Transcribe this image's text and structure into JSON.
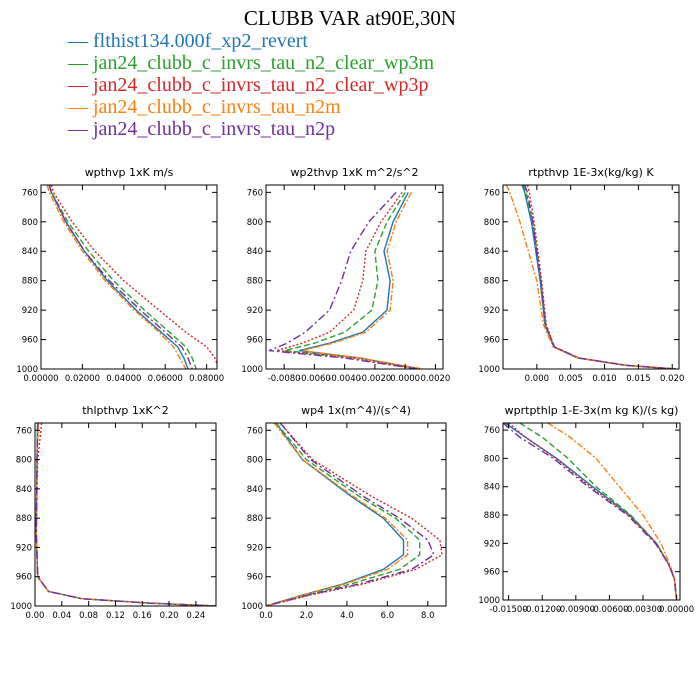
{
  "title": "CLUBB VAR at90E,30N",
  "series": [
    {
      "name": "flthist134.000f_xp2_revert",
      "color": "#1f77b4",
      "dash": ""
    },
    {
      "name": "jan24_clubb_c_invrs_tau_n2_clear_wp3m",
      "color": "#2ca02c",
      "dash": "6,3"
    },
    {
      "name": "jan24_clubb_c_invrs_tau_n2_clear_wp3p",
      "color": "#d62728",
      "dash": "2,2"
    },
    {
      "name": "jan24_clubb_c_invrs_tau_n2m",
      "color": "#ff7f0e",
      "dash": "6,2,2,2"
    },
    {
      "name": "jan24_clubb_c_invrs_tau_n2p",
      "color": "#7030a0",
      "dash": "8,3,2,3"
    }
  ],
  "chart_data": [
    {
      "type": "line",
      "title": "wpthvp   1xK m/s",
      "ylim": [
        1000,
        750
      ],
      "yticks": [
        760,
        800,
        840,
        880,
        920,
        960,
        1000
      ],
      "xlim": [
        0,
        0.085
      ],
      "xticks": [
        0,
        0.02,
        0.04,
        0.06,
        0.08
      ],
      "xticklabels": [
        "0.00000",
        "0.02000",
        "0.04000",
        "0.06000",
        "0.08000"
      ],
      "y": [
        750,
        760,
        800,
        840,
        880,
        920,
        950,
        970,
        985,
        1000
      ],
      "series": [
        {
          "values": [
            0.004,
            0.005,
            0.012,
            0.021,
            0.032,
            0.046,
            0.058,
            0.066,
            0.069,
            0.071
          ]
        },
        {
          "values": [
            0.004,
            0.005,
            0.013,
            0.023,
            0.035,
            0.05,
            0.062,
            0.07,
            0.073,
            0.075
          ]
        },
        {
          "values": [
            0.005,
            0.006,
            0.015,
            0.026,
            0.04,
            0.057,
            0.07,
            0.08,
            0.084,
            0.086
          ]
        },
        {
          "values": [
            0.003,
            0.004,
            0.011,
            0.02,
            0.031,
            0.045,
            0.057,
            0.064,
            0.067,
            0.07
          ]
        },
        {
          "values": [
            0.004,
            0.005,
            0.012,
            0.021,
            0.033,
            0.048,
            0.06,
            0.068,
            0.071,
            0.073
          ]
        }
      ]
    },
    {
      "type": "line",
      "title": "wp2thvp   1xK m^2/s^2",
      "ylim": [
        1000,
        750
      ],
      "yticks": [
        760,
        800,
        840,
        880,
        920,
        960,
        1000
      ],
      "xlim": [
        -0.0092,
        0.0025
      ],
      "xticks": [
        -0.008,
        -0.006,
        -0.004,
        -0.002,
        0,
        0.002
      ],
      "xticklabels": [
        "-0.0080",
        "-0.0060",
        "-0.0040",
        "-0.0020",
        "0.0000",
        "0.0020"
      ],
      "y": [
        760,
        800,
        840,
        880,
        920,
        950,
        965,
        975,
        985,
        1000
      ],
      "series": [
        {
          "values": [
            0.0002,
            -0.0008,
            -0.0014,
            -0.001,
            -0.0012,
            -0.0028,
            -0.005,
            -0.007,
            -0.003,
            0.001
          ]
        },
        {
          "values": [
            0.0,
            -0.0012,
            -0.002,
            -0.0018,
            -0.0022,
            -0.004,
            -0.006,
            -0.008,
            -0.003,
            0.0008
          ]
        },
        {
          "values": [
            -0.0002,
            -0.0016,
            -0.0026,
            -0.0028,
            -0.0034,
            -0.005,
            -0.0068,
            -0.0085,
            -0.0035,
            0.0008
          ]
        },
        {
          "values": [
            0.0004,
            -0.0006,
            -0.0012,
            -0.0008,
            -0.001,
            -0.0026,
            -0.0048,
            -0.0068,
            -0.003,
            0.0012
          ]
        },
        {
          "values": [
            -0.0006,
            -0.0024,
            -0.0036,
            -0.0042,
            -0.005,
            -0.0066,
            -0.0078,
            -0.009,
            -0.004,
            0.0008
          ]
        }
      ]
    },
    {
      "type": "line",
      "title": "rtpthvp   1E-3x(kg/kg) K",
      "ylim": [
        1000,
        750
      ],
      "yticks": [
        760,
        800,
        840,
        880,
        920,
        960,
        1000
      ],
      "xlim": [
        -0.005,
        0.021
      ],
      "xticks": [
        0,
        0.005,
        0.01,
        0.015,
        0.02
      ],
      "xticklabels": [
        "0.000",
        "0.005",
        "0.010",
        "0.015",
        "0.020"
      ],
      "y": [
        750,
        760,
        800,
        880,
        940,
        970,
        985,
        995,
        1000
      ],
      "series": [
        {
          "values": [
            -0.0022,
            -0.0018,
            -0.0008,
            0.0005,
            0.0012,
            0.0025,
            0.006,
            0.013,
            0.0205
          ]
        },
        {
          "values": [
            -0.002,
            -0.0016,
            -0.0006,
            0.0006,
            0.0013,
            0.0026,
            0.0062,
            0.0132,
            0.0205
          ]
        },
        {
          "values": [
            -0.0014,
            -0.0011,
            -0.0004,
            0.0007,
            0.0014,
            0.0026,
            0.0062,
            0.0132,
            0.0205
          ]
        },
        {
          "values": [
            -0.0045,
            -0.004,
            -0.0025,
            0.0,
            0.001,
            0.0024,
            0.006,
            0.013,
            0.0205
          ]
        },
        {
          "values": [
            -0.0018,
            -0.0014,
            -0.0006,
            0.0006,
            0.0013,
            0.0026,
            0.0062,
            0.0132,
            0.0205
          ]
        }
      ]
    },
    {
      "type": "line",
      "title": "thlpthvp   1xK^2",
      "ylim": [
        1000,
        750
      ],
      "yticks": [
        760,
        800,
        840,
        880,
        920,
        960,
        1000
      ],
      "xlim": [
        0,
        0.27
      ],
      "xticks": [
        0,
        0.04,
        0.08,
        0.12,
        0.16,
        0.2,
        0.24
      ],
      "xticklabels": [
        "0.00",
        "0.04",
        "0.08",
        "0.12",
        "0.16",
        "0.20",
        "0.24"
      ],
      "y": [
        750,
        800,
        900,
        960,
        980,
        990,
        996,
        1000
      ],
      "series": [
        {
          "values": [
            0.004,
            0.003,
            0.002,
            0.004,
            0.02,
            0.07,
            0.17,
            0.27
          ]
        },
        {
          "values": [
            0.004,
            0.003,
            0.002,
            0.004,
            0.02,
            0.07,
            0.17,
            0.27
          ]
        },
        {
          "values": [
            0.01,
            0.004,
            0.002,
            0.004,
            0.02,
            0.07,
            0.17,
            0.27
          ]
        },
        {
          "values": [
            0.005,
            0.003,
            0.002,
            0.004,
            0.02,
            0.07,
            0.17,
            0.27
          ]
        },
        {
          "values": [
            0.004,
            0.003,
            0.002,
            0.004,
            0.02,
            0.07,
            0.17,
            0.27
          ]
        }
      ]
    },
    {
      "type": "line",
      "title": "wp4   1x(m^4)/(s^4)",
      "ylim": [
        1000,
        750
      ],
      "yticks": [
        760,
        800,
        840,
        880,
        920,
        960,
        1000
      ],
      "xlim": [
        0,
        8.9
      ],
      "xticks": [
        0,
        2,
        4,
        6,
        8
      ],
      "xticklabels": [
        "0.0",
        "2.0",
        "4.0",
        "6.0",
        "8.0"
      ],
      "y": [
        750,
        800,
        850,
        880,
        910,
        930,
        950,
        970,
        985,
        1000
      ],
      "series": [
        {
          "values": [
            0.5,
            1.8,
            4.2,
            5.8,
            6.8,
            6.8,
            5.8,
            3.8,
            1.8,
            0.0
          ]
        },
        {
          "values": [
            0.5,
            2.0,
            4.6,
            6.4,
            7.6,
            7.6,
            6.6,
            4.2,
            2.0,
            0.0
          ]
        },
        {
          "values": [
            0.7,
            2.3,
            5.2,
            7.2,
            8.6,
            8.7,
            7.4,
            4.8,
            2.2,
            0.0
          ]
        },
        {
          "values": [
            0.4,
            1.8,
            4.3,
            5.9,
            7.0,
            7.0,
            6.0,
            3.9,
            1.8,
            0.0
          ]
        },
        {
          "values": [
            0.7,
            2.2,
            4.8,
            6.6,
            8.0,
            8.3,
            7.2,
            4.6,
            2.1,
            0.0
          ]
        }
      ]
    },
    {
      "type": "line",
      "title": "wprtpthlp   1-E-3x(m kg K)/(s kg)",
      "ylim": [
        1000,
        750
      ],
      "yticks": [
        760,
        800,
        840,
        880,
        920,
        960,
        1000
      ],
      "xlim": [
        -0.0155,
        0.0003
      ],
      "xticks": [
        -0.015,
        -0.012,
        -0.009,
        -0.006,
        -0.003,
        0
      ],
      "xticklabels": [
        "-0.01500",
        "-0.01200",
        "-0.00900",
        "-0.00600",
        "-0.00300",
        "0.00000"
      ],
      "y": [
        750,
        770,
        800,
        840,
        880,
        920,
        950,
        970,
        1000
      ],
      "series": [
        {
          "values": [
            -0.0153,
            -0.0135,
            -0.0107,
            -0.0075,
            -0.0042,
            -0.0018,
            -0.0007,
            -0.0002,
            0.0
          ]
        },
        {
          "values": [
            -0.014,
            -0.012,
            -0.0097,
            -0.0072,
            -0.0041,
            -0.0018,
            -0.0007,
            -0.0002,
            0.0
          ]
        },
        {
          "values": [
            -0.015,
            -0.0135,
            -0.0108,
            -0.0077,
            -0.0043,
            -0.0018,
            -0.0007,
            -0.0002,
            0.0
          ]
        },
        {
          "values": [
            -0.0115,
            -0.0095,
            -0.0072,
            -0.0051,
            -0.003,
            -0.0014,
            -0.0006,
            -0.0002,
            0.0
          ]
        },
        {
          "values": [
            -0.0155,
            -0.014,
            -0.011,
            -0.0079,
            -0.0044,
            -0.0019,
            -0.0007,
            -0.0002,
            0.0
          ]
        }
      ]
    }
  ]
}
